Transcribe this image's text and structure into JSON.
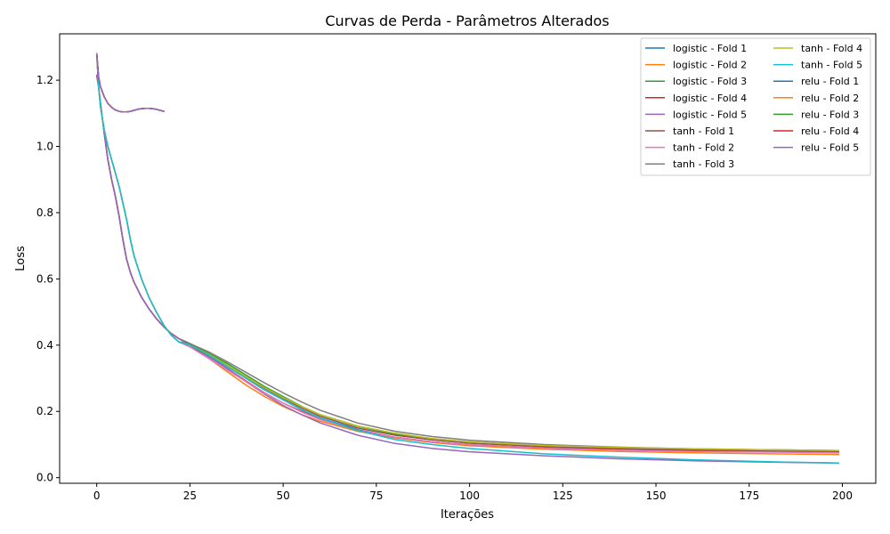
{
  "chart_data": {
    "type": "line",
    "title": "Curvas de Perda - Parâmetros Alterados",
    "xlabel": "Iterações",
    "ylabel": "Loss",
    "xlim": [
      -9.95,
      208.95
    ],
    "ylim": [
      -0.017,
      1.34
    ],
    "xticks": [
      0,
      25,
      50,
      75,
      100,
      125,
      150,
      175,
      200
    ],
    "yticks": [
      0.0,
      0.2,
      0.4,
      0.6,
      0.8,
      1.0,
      1.2
    ],
    "ytick_labels": [
      "0.0",
      "0.2",
      "0.4",
      "0.6",
      "0.8",
      "1.0",
      "1.2"
    ],
    "grid": false,
    "legend_position": "top-right",
    "legend_columns": 2,
    "series": [
      {
        "name": "logistic - Fold 1",
        "color": "#1f77b4",
        "x": [
          0,
          0.5,
          1,
          2,
          3,
          4,
          5,
          6,
          7,
          8,
          9,
          10,
          12,
          14,
          16,
          18,
          20,
          22,
          25,
          30,
          35,
          40,
          45,
          50,
          55,
          60,
          70,
          80,
          90,
          100,
          120,
          140,
          160,
          180,
          199
        ],
        "y": [
          1.215,
          1.18,
          1.13,
          1.04,
          0.96,
          0.9,
          0.85,
          0.79,
          0.72,
          0.66,
          0.62,
          0.59,
          0.545,
          0.51,
          0.48,
          0.455,
          0.435,
          0.42,
          0.405,
          0.375,
          0.34,
          0.3,
          0.265,
          0.235,
          0.205,
          0.18,
          0.145,
          0.122,
          0.108,
          0.098,
          0.09,
          0.084,
          0.081,
          0.078,
          0.076
        ]
      },
      {
        "name": "logistic - Fold 2",
        "color": "#ff7f0e",
        "x": [
          0,
          0.5,
          1,
          2,
          3,
          4,
          5,
          6,
          7,
          8,
          9,
          10,
          12,
          14,
          16,
          18,
          20,
          22,
          25,
          30,
          35,
          40,
          45,
          50,
          55,
          60,
          70,
          80,
          90,
          100,
          120,
          140,
          160,
          180,
          199
        ],
        "y": [
          1.215,
          1.18,
          1.13,
          1.04,
          0.96,
          0.9,
          0.85,
          0.79,
          0.72,
          0.66,
          0.62,
          0.59,
          0.545,
          0.51,
          0.48,
          0.455,
          0.435,
          0.42,
          0.4,
          0.36,
          0.32,
          0.28,
          0.245,
          0.215,
          0.19,
          0.17,
          0.14,
          0.12,
          0.106,
          0.096,
          0.086,
          0.079,
          0.075,
          0.072,
          0.07
        ]
      },
      {
        "name": "logistic - Fold 3",
        "color": "#2ca02c",
        "x": [
          0,
          0.5,
          1,
          2,
          3,
          4,
          5,
          6,
          7,
          8,
          9,
          10,
          12,
          14,
          16,
          18,
          20,
          22,
          25,
          30,
          35,
          40,
          45,
          50,
          55,
          60,
          70,
          80,
          90,
          100,
          120,
          140,
          160,
          180,
          199
        ],
        "y": [
          1.215,
          1.18,
          1.13,
          1.04,
          0.96,
          0.9,
          0.85,
          0.79,
          0.72,
          0.66,
          0.62,
          0.59,
          0.545,
          0.51,
          0.48,
          0.455,
          0.435,
          0.42,
          0.405,
          0.375,
          0.345,
          0.31,
          0.275,
          0.245,
          0.215,
          0.19,
          0.155,
          0.132,
          0.118,
          0.108,
          0.096,
          0.09,
          0.086,
          0.084,
          0.082
        ]
      },
      {
        "name": "logistic - Fold 4",
        "color": "#d62728",
        "x": [
          0,
          0.5,
          1,
          2,
          3,
          4,
          5,
          6,
          7,
          8,
          9,
          10,
          12,
          14,
          16,
          18,
          20,
          22,
          25,
          30,
          35,
          40,
          45,
          50,
          55,
          60,
          70,
          80,
          90,
          100,
          120,
          140,
          160,
          180,
          199
        ],
        "y": [
          1.215,
          1.18,
          1.13,
          1.04,
          0.96,
          0.9,
          0.85,
          0.79,
          0.72,
          0.66,
          0.62,
          0.59,
          0.545,
          0.51,
          0.48,
          0.455,
          0.435,
          0.42,
          0.402,
          0.368,
          0.33,
          0.292,
          0.256,
          0.225,
          0.2,
          0.176,
          0.143,
          0.122,
          0.108,
          0.099,
          0.09,
          0.085,
          0.081,
          0.079,
          0.077
        ]
      },
      {
        "name": "logistic - Fold 5",
        "color": "#9467bd",
        "x": [
          0,
          0.5,
          1,
          2,
          3,
          4,
          5,
          6,
          7,
          8,
          9,
          10,
          12,
          14,
          16,
          18,
          20,
          22,
          25,
          30,
          35,
          40,
          45,
          50,
          55,
          60,
          70,
          80,
          90,
          100,
          120,
          140,
          160,
          180,
          199
        ],
        "y": [
          1.215,
          1.18,
          1.13,
          1.04,
          0.96,
          0.9,
          0.85,
          0.79,
          0.72,
          0.66,
          0.62,
          0.59,
          0.545,
          0.51,
          0.48,
          0.455,
          0.435,
          0.42,
          0.4,
          0.365,
          0.33,
          0.29,
          0.252,
          0.218,
          0.19,
          0.165,
          0.128,
          0.103,
          0.088,
          0.078,
          0.066,
          0.057,
          0.051,
          0.047,
          0.044
        ]
      },
      {
        "name": "tanh - Fold 1",
        "color": "#8c564b",
        "x": [
          0,
          0.5,
          1,
          2,
          3,
          4,
          5,
          6,
          7,
          8,
          9,
          10,
          12,
          14,
          16,
          18,
          20,
          22,
          25,
          30,
          35,
          40,
          45,
          50,
          55,
          60,
          70,
          80,
          90,
          100,
          120,
          140,
          160,
          180,
          199
        ],
        "y": [
          1.28,
          1.18,
          1.12,
          1.05,
          1.0,
          0.96,
          0.92,
          0.88,
          0.83,
          0.78,
          0.72,
          0.67,
          0.6,
          0.545,
          0.5,
          0.46,
          0.43,
          0.41,
          0.395,
          0.37,
          0.34,
          0.305,
          0.27,
          0.24,
          0.21,
          0.185,
          0.15,
          0.128,
          0.114,
          0.104,
          0.094,
          0.088,
          0.084,
          0.082,
          0.08
        ]
      },
      {
        "name": "tanh - Fold 2",
        "color": "#e377c2",
        "x": [
          0,
          0.5,
          1,
          2,
          3,
          4,
          5,
          6,
          7,
          8,
          9,
          10,
          12,
          14,
          16,
          18,
          20,
          22,
          25,
          30,
          35,
          40,
          45,
          50,
          55,
          60,
          70,
          80,
          90,
          100,
          120,
          140,
          160,
          180,
          199
        ],
        "y": [
          1.28,
          1.18,
          1.12,
          1.05,
          1.0,
          0.96,
          0.92,
          0.88,
          0.83,
          0.78,
          0.72,
          0.67,
          0.6,
          0.545,
          0.5,
          0.46,
          0.43,
          0.41,
          0.395,
          0.36,
          0.325,
          0.29,
          0.255,
          0.225,
          0.198,
          0.175,
          0.143,
          0.122,
          0.108,
          0.099,
          0.089,
          0.083,
          0.079,
          0.077,
          0.075
        ]
      },
      {
        "name": "tanh - Fold 3",
        "color": "#7f7f7f",
        "x": [
          0,
          0.5,
          1,
          2,
          3,
          4,
          5,
          6,
          7,
          8,
          9,
          10,
          12,
          14,
          16,
          18,
          20,
          22,
          25,
          30,
          35,
          40,
          45,
          50,
          55,
          60,
          70,
          80,
          90,
          100,
          120,
          140,
          160,
          180,
          199
        ],
        "y": [
          1.28,
          1.18,
          1.12,
          1.05,
          1.0,
          0.96,
          0.92,
          0.88,
          0.83,
          0.78,
          0.72,
          0.67,
          0.6,
          0.545,
          0.5,
          0.46,
          0.43,
          0.41,
          0.405,
          0.38,
          0.35,
          0.318,
          0.286,
          0.256,
          0.228,
          0.203,
          0.165,
          0.14,
          0.124,
          0.113,
          0.1,
          0.092,
          0.087,
          0.084,
          0.082
        ]
      },
      {
        "name": "tanh - Fold 4",
        "color": "#bcbd22",
        "x": [
          0,
          0.5,
          1,
          2,
          3,
          4,
          5,
          6,
          7,
          8,
          9,
          10,
          12,
          14,
          16,
          18,
          20,
          22,
          25,
          30,
          35,
          40,
          45,
          50,
          55,
          60,
          70,
          80,
          90,
          100,
          120,
          140,
          160,
          180,
          199
        ],
        "y": [
          1.28,
          1.18,
          1.12,
          1.05,
          1.0,
          0.96,
          0.92,
          0.88,
          0.83,
          0.78,
          0.72,
          0.67,
          0.6,
          0.545,
          0.5,
          0.46,
          0.43,
          0.41,
          0.4,
          0.372,
          0.34,
          0.305,
          0.272,
          0.242,
          0.214,
          0.19,
          0.156,
          0.134,
          0.118,
          0.108,
          0.097,
          0.091,
          0.087,
          0.084,
          0.082
        ]
      },
      {
        "name": "tanh - Fold 5",
        "color": "#17becf",
        "x": [
          0,
          0.5,
          1,
          2,
          3,
          4,
          5,
          6,
          7,
          8,
          9,
          10,
          12,
          14,
          16,
          18,
          20,
          22,
          25,
          30,
          35,
          40,
          45,
          50,
          55,
          60,
          70,
          80,
          90,
          100,
          120,
          140,
          160,
          180,
          199
        ],
        "y": [
          1.28,
          1.18,
          1.12,
          1.05,
          1.0,
          0.96,
          0.92,
          0.88,
          0.83,
          0.78,
          0.72,
          0.67,
          0.6,
          0.545,
          0.5,
          0.46,
          0.43,
          0.41,
          0.4,
          0.37,
          0.335,
          0.3,
          0.265,
          0.235,
          0.205,
          0.18,
          0.142,
          0.115,
          0.1,
          0.088,
          0.072,
          0.062,
          0.054,
          0.048,
          0.044
        ]
      },
      {
        "name": "relu - Fold 1",
        "color": "#1f77b4",
        "x": [
          0,
          0.5,
          1,
          2,
          3,
          4,
          5,
          6,
          7,
          8,
          9,
          10,
          11,
          12,
          13,
          14,
          15,
          16,
          17,
          18
        ],
        "y": [
          1.28,
          1.21,
          1.18,
          1.15,
          1.13,
          1.118,
          1.11,
          1.106,
          1.104,
          1.104,
          1.106,
          1.109,
          1.112,
          1.114,
          1.115,
          1.115,
          1.114,
          1.112,
          1.109,
          1.106
        ]
      },
      {
        "name": "relu - Fold 2",
        "color": "#ff7f0e",
        "x": [
          0,
          0.5,
          1,
          2,
          3,
          4,
          5,
          6,
          7,
          8,
          9,
          10,
          11,
          12,
          13,
          14,
          15,
          16,
          17,
          18
        ],
        "y": [
          1.28,
          1.21,
          1.18,
          1.15,
          1.13,
          1.118,
          1.11,
          1.106,
          1.104,
          1.104,
          1.106,
          1.109,
          1.112,
          1.114,
          1.115,
          1.115,
          1.114,
          1.112,
          1.109,
          1.106
        ]
      },
      {
        "name": "relu - Fold 3",
        "color": "#2ca02c",
        "x": [
          0,
          0.5,
          1,
          2,
          3,
          4,
          5,
          6,
          7,
          8,
          9,
          10,
          11,
          12,
          13,
          14,
          15,
          16,
          17,
          18
        ],
        "y": [
          1.28,
          1.21,
          1.18,
          1.15,
          1.13,
          1.118,
          1.11,
          1.106,
          1.104,
          1.104,
          1.106,
          1.109,
          1.112,
          1.114,
          1.115,
          1.115,
          1.114,
          1.112,
          1.109,
          1.106
        ]
      },
      {
        "name": "relu - Fold 4",
        "color": "#d62728",
        "x": [
          0,
          0.5,
          1,
          2,
          3,
          4,
          5,
          6,
          7,
          8,
          9,
          10,
          11,
          12,
          13,
          14,
          15,
          16,
          17,
          18
        ],
        "y": [
          1.28,
          1.21,
          1.18,
          1.15,
          1.13,
          1.118,
          1.11,
          1.106,
          1.104,
          1.104,
          1.106,
          1.109,
          1.112,
          1.114,
          1.115,
          1.115,
          1.114,
          1.112,
          1.109,
          1.106
        ]
      },
      {
        "name": "relu - Fold 5",
        "color": "#9467bd",
        "x": [
          0,
          0.5,
          1,
          2,
          3,
          4,
          5,
          6,
          7,
          8,
          9,
          10,
          11,
          12,
          13,
          14,
          15,
          16,
          17,
          18
        ],
        "y": [
          1.28,
          1.21,
          1.18,
          1.15,
          1.13,
          1.118,
          1.11,
          1.106,
          1.104,
          1.104,
          1.106,
          1.109,
          1.112,
          1.114,
          1.115,
          1.115,
          1.114,
          1.112,
          1.109,
          1.106
        ]
      }
    ]
  }
}
